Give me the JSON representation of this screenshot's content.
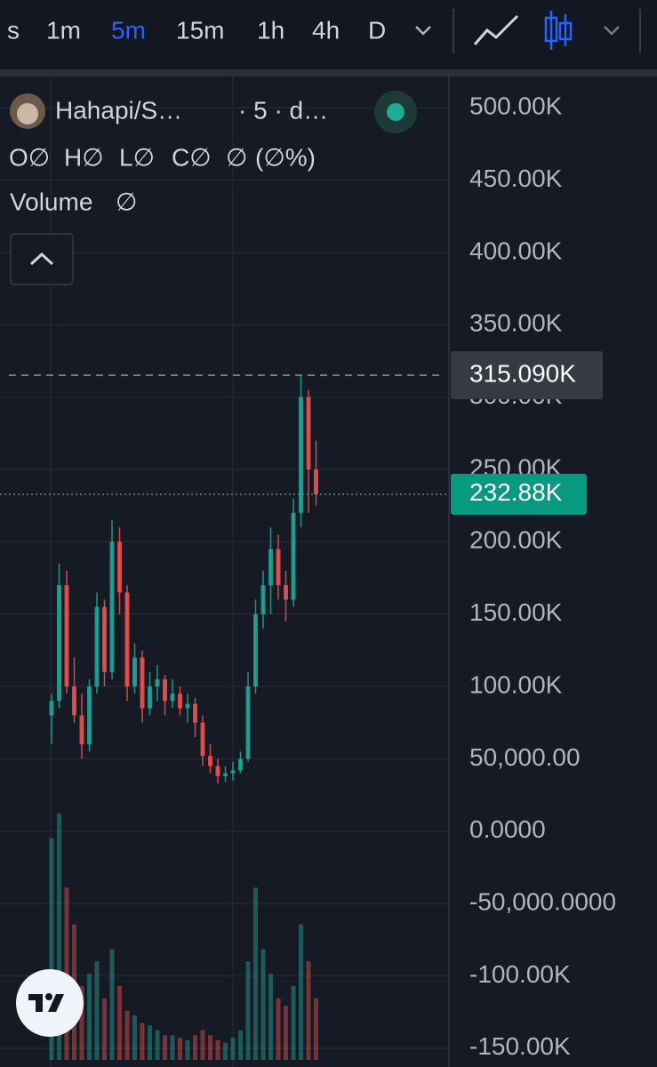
{
  "toolbar": {
    "intervals": [
      "s",
      "1m",
      "5m",
      "15m",
      "1h",
      "4h",
      "D"
    ],
    "selected": 2,
    "selected_color": "#2962ff"
  },
  "legend": {
    "symbol": "Hahapi/S…",
    "meta": "· 5 · d…",
    "ohlc": [
      "O∅",
      "H∅",
      "L∅",
      "C∅",
      "∅",
      "(∅%)"
    ],
    "volume_label": "Volume",
    "volume_value": "∅"
  },
  "chart_data": {
    "type": "candlestick",
    "open": [
      80000,
      90000,
      170000,
      100000,
      80000,
      60000,
      100000,
      155000,
      110000,
      200000,
      165000,
      100000,
      120000,
      85000,
      100000,
      105000,
      90000,
      95000,
      85000,
      88000,
      75000,
      52000,
      45000,
      38000,
      40000,
      42000,
      50000,
      100000,
      150000,
      170000,
      195000,
      170000,
      160000,
      220000,
      300000,
      250000
    ],
    "high": [
      95000,
      185000,
      180000,
      120000,
      95000,
      105000,
      165000,
      160000,
      215000,
      210000,
      170000,
      130000,
      125000,
      110000,
      115000,
      108000,
      105000,
      100000,
      95000,
      92000,
      80000,
      60000,
      50000,
      45000,
      48000,
      55000,
      110000,
      160000,
      180000,
      210000,
      205000,
      180000,
      230000,
      315090,
      305000,
      270000
    ],
    "low": [
      60000,
      85000,
      95000,
      75000,
      50000,
      55000,
      95000,
      100000,
      105000,
      150000,
      90000,
      95000,
      75000,
      80000,
      90000,
      80000,
      85000,
      80000,
      75000,
      65000,
      45000,
      40000,
      33000,
      34000,
      35000,
      40000,
      48000,
      95000,
      140000,
      150000,
      160000,
      145000,
      155000,
      210000,
      220000,
      225000
    ],
    "close": [
      90000,
      170000,
      100000,
      80000,
      60000,
      100000,
      155000,
      110000,
      200000,
      165000,
      100000,
      120000,
      85000,
      100000,
      105000,
      90000,
      95000,
      85000,
      88000,
      75000,
      52000,
      45000,
      38000,
      40000,
      42000,
      50000,
      100000,
      150000,
      170000,
      195000,
      170000,
      160000,
      220000,
      300000,
      250000,
      232880
    ],
    "volume": [
      90,
      100,
      70,
      55,
      30,
      35,
      40,
      25,
      45,
      30,
      20,
      18,
      15,
      14,
      12,
      10,
      10,
      9,
      8,
      10,
      12,
      10,
      8,
      7,
      9,
      12,
      40,
      70,
      45,
      35,
      25,
      22,
      30,
      55,
      40,
      25
    ],
    "y2lim": [
      0,
      100
    ],
    "up_color": "#26a69a",
    "down_color": "#ef5350",
    "ylim": [
      -163000,
      521600
    ],
    "yticks": [
      {
        "value": 500000,
        "label": "500.00K"
      },
      {
        "value": 450000,
        "label": "450.00K"
      },
      {
        "value": 400000,
        "label": "400.00K"
      },
      {
        "value": 350000,
        "label": "350.00K"
      },
      {
        "value": 300000,
        "label": "300.00K"
      },
      {
        "value": 250000,
        "label": "250.00K"
      },
      {
        "value": 200000,
        "label": "200.00K"
      },
      {
        "value": 150000,
        "label": "150.00K"
      },
      {
        "value": 100000,
        "label": "100.00K"
      },
      {
        "value": 50000,
        "label": "50,000.00"
      },
      {
        "value": 0,
        "label": "0.0000"
      },
      {
        "value": -50000,
        "label": "-50,000.0000"
      },
      {
        "value": -100000,
        "label": "-100.00K"
      },
      {
        "value": -150000,
        "label": "-150.00K"
      }
    ],
    "grid": true,
    "high_price": {
      "value": 315090,
      "label": "315.090K"
    },
    "last_price": {
      "value": 232880,
      "label": "232.88K"
    }
  }
}
